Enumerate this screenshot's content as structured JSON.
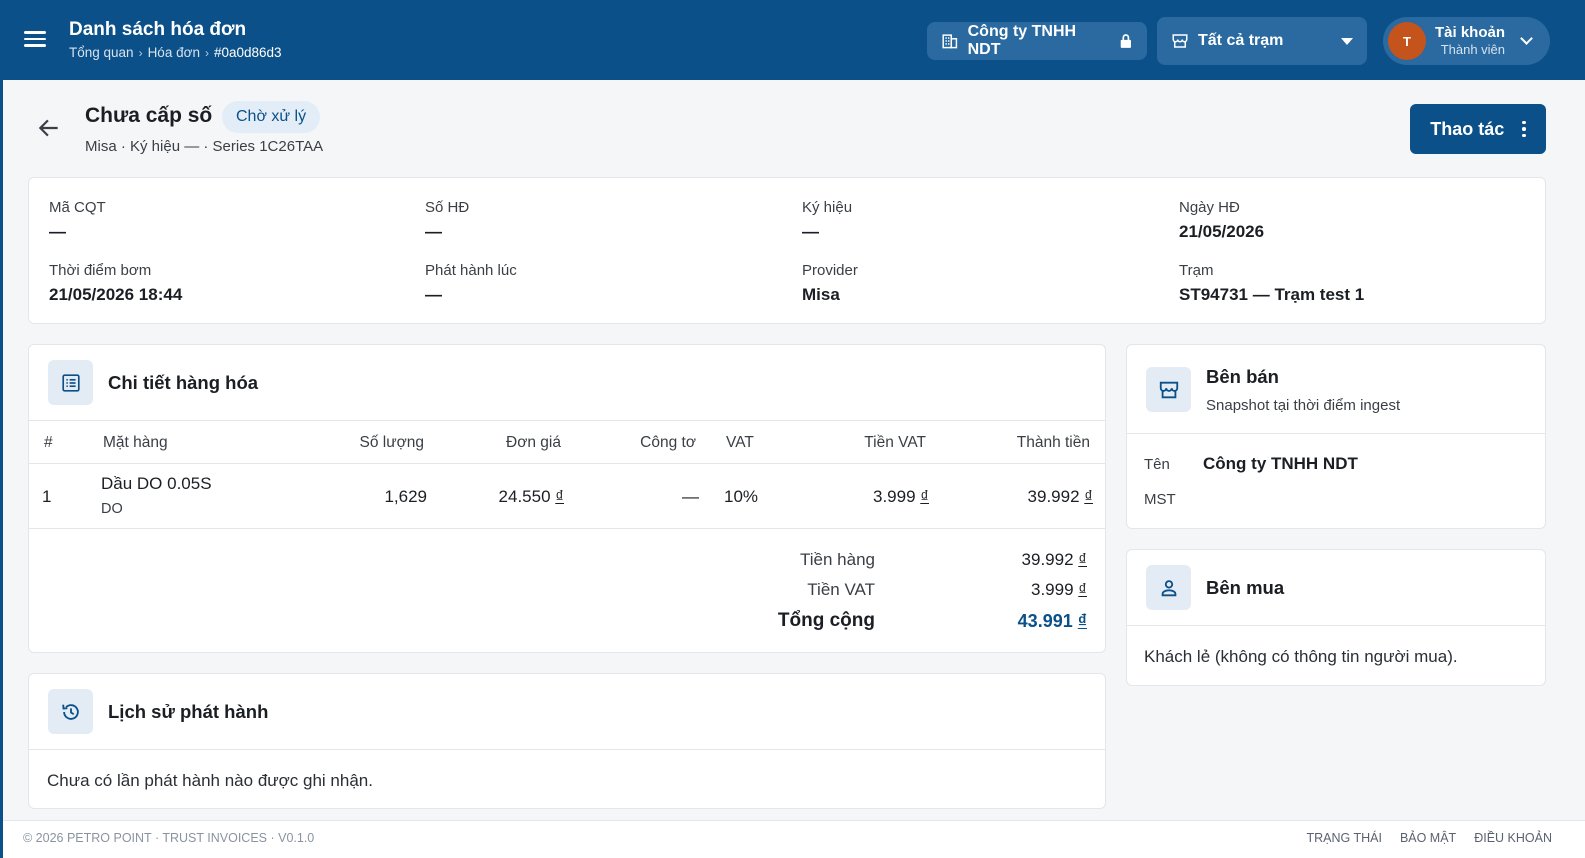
{
  "header": {
    "title": "Danh sách hóa đơn",
    "breadcrumb": [
      "Tổng quan",
      "Hóa đơn",
      "#0a0d86d3"
    ],
    "company_chip": "Công ty TNHH NDT",
    "station_select": "Tất cả trạm",
    "account": {
      "initial": "T",
      "name": "Tài khoản",
      "role": "Thành viên"
    }
  },
  "page": {
    "title": "Chưa cấp số",
    "status": "Chờ xử lý",
    "subtitle": "Misa · Ký hiệu — · Series 1C26TAA",
    "action_label": "Thao tác"
  },
  "info": {
    "ma_cqt": {
      "label": "Mã CQT",
      "value": "—"
    },
    "so_hd": {
      "label": "Số HĐ",
      "value": "—"
    },
    "ky_hieu": {
      "label": "Ký hiệu",
      "value": "—"
    },
    "ngay_hd": {
      "label": "Ngày HĐ",
      "value": "21/05/2026"
    },
    "thoi_diem_bom": {
      "label": "Thời điểm bơm",
      "value": "21/05/2026 18:44"
    },
    "phat_hanh_luc": {
      "label": "Phát hành lúc",
      "value": "—"
    },
    "provider": {
      "label": "Provider",
      "value": "Misa"
    },
    "tram": {
      "label": "Trạm",
      "value": "ST94731 — Trạm test 1"
    }
  },
  "items": {
    "title": "Chi tiết hàng hóa",
    "columns": [
      "#",
      "Mặt hàng",
      "Số lượng",
      "Đơn giá",
      "Công tơ",
      "VAT",
      "Tiền VAT",
      "Thành tiền"
    ],
    "rows": [
      {
        "index": "1",
        "name": "Dầu DO 0.05S",
        "code": "DO",
        "qty": "1,629",
        "price": "24.550",
        "meter": "—",
        "vat": "10%",
        "vat_amount": "3.999",
        "amount": "39.992"
      }
    ],
    "currency": "₫",
    "totals": {
      "goods_label": "Tiền hàng",
      "goods_value": "39.992",
      "vat_label": "Tiền VAT",
      "vat_value": "3.999",
      "total_label": "Tổng cộng",
      "total_value": "43.991"
    }
  },
  "history": {
    "title": "Lịch sử phát hành",
    "empty": "Chưa có lần phát hành nào được ghi nhận."
  },
  "seller": {
    "title": "Bên bán",
    "subtitle": "Snapshot tại thời điểm ingest",
    "name_label": "Tên",
    "name_value": "Công ty TNHH NDT",
    "mst_label": "MST"
  },
  "buyer": {
    "title": "Bên mua",
    "empty": "Khách lẻ (không có thông tin người mua)."
  },
  "footer": {
    "copyright": "© 2026 PETRO POINT · TRUST INVOICES · V0.1.0",
    "links": [
      "TRẠNG THÁI",
      "BẢO MẬT",
      "ĐIỀU KHOẢN"
    ]
  },
  "colors": {
    "brand": "#0b5088",
    "accent_badge_bg": "#e2edf7",
    "avatar": "#c4541b"
  }
}
